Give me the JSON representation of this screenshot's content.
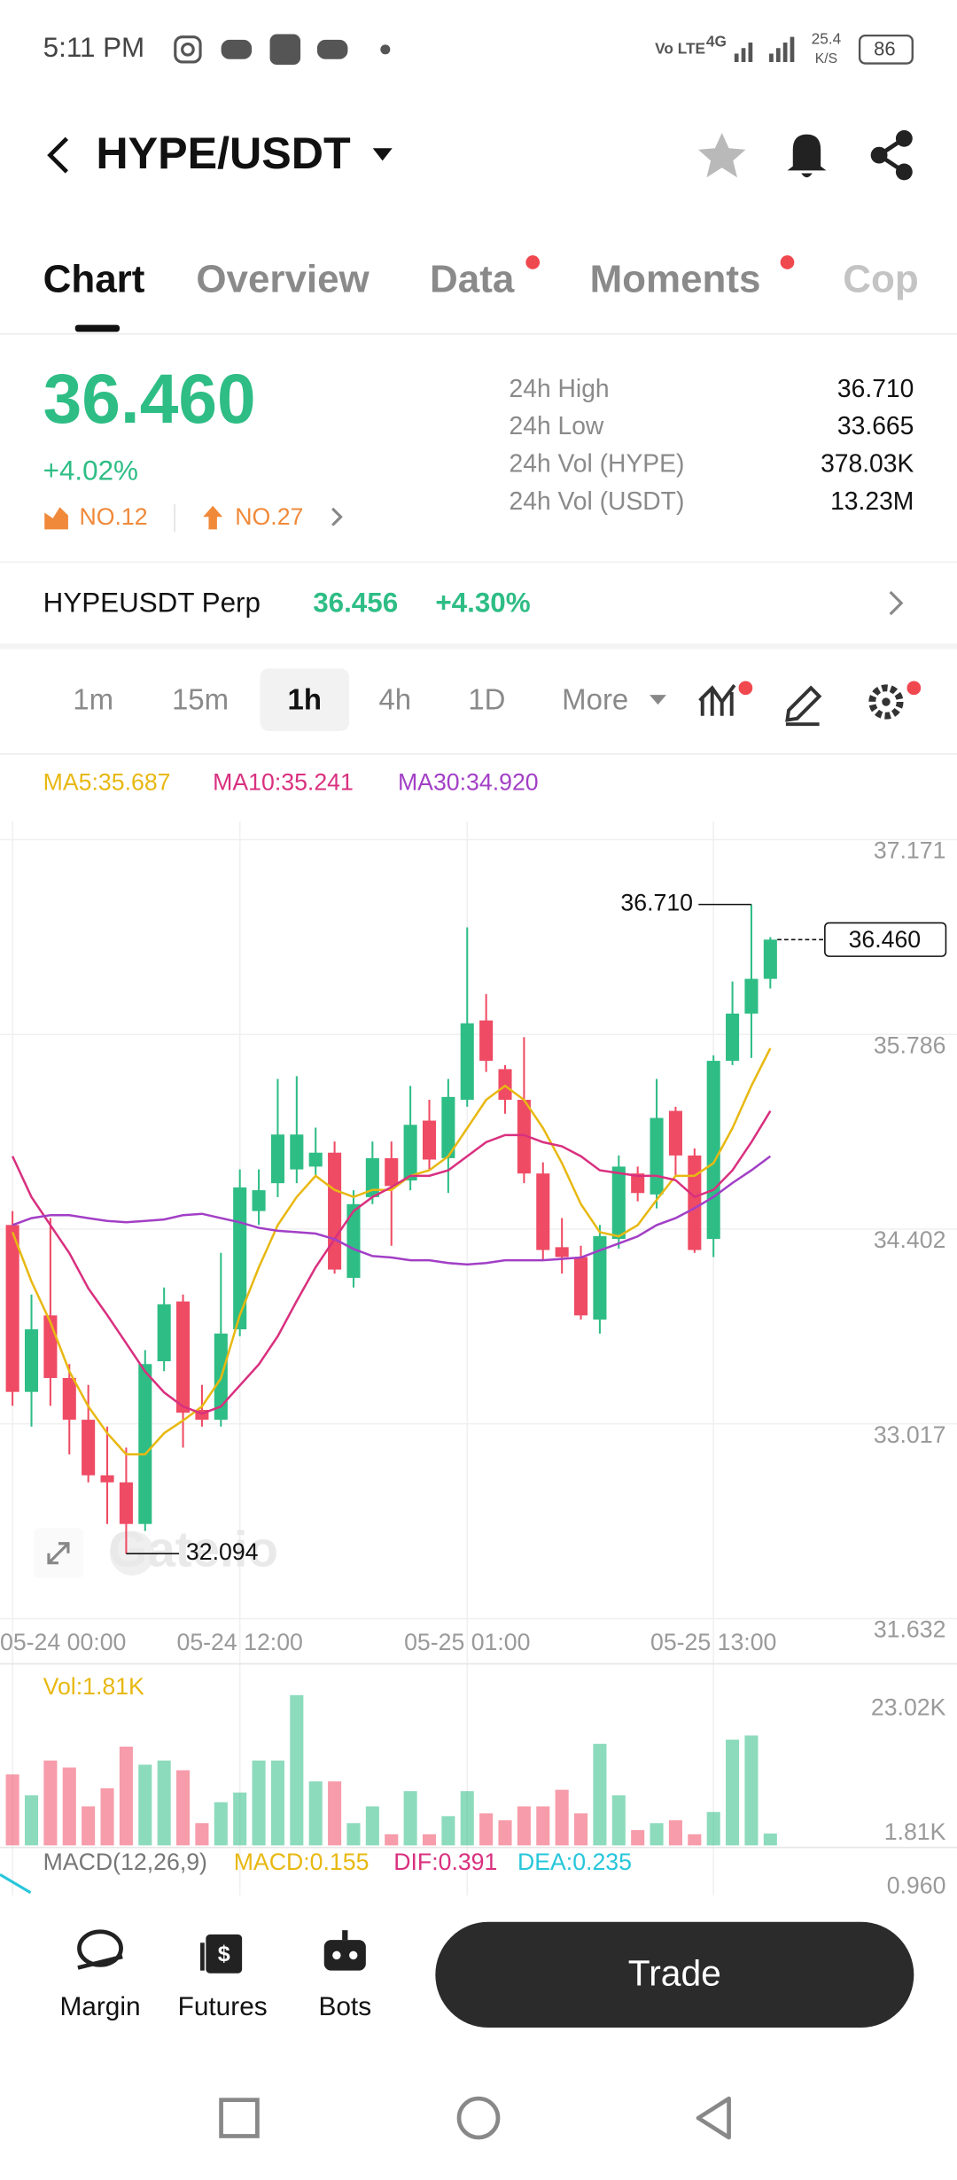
{
  "status_bar": {
    "time": "5:11 PM",
    "network": "Vo LTE",
    "signal": "4G",
    "speed": "25.4",
    "speed_unit": "K/S",
    "battery": "86"
  },
  "header": {
    "title": "HYPE/USDT"
  },
  "tabs": [
    "Chart",
    "Overview",
    "Data",
    "Moments",
    "Cop"
  ],
  "ticker": {
    "price": "36.460",
    "change": "+4.02%",
    "rank_1": "NO.12",
    "rank_2": "NO.27",
    "stats": [
      {
        "label": "24h High",
        "value": "36.710"
      },
      {
        "label": "24h Low",
        "value": "33.665"
      },
      {
        "label": "24h Vol (HYPE)",
        "value": "378.03K"
      },
      {
        "label": "24h Vol (USDT)",
        "value": "13.23M"
      }
    ]
  },
  "perp": {
    "name": "HYPEUSDT Perp",
    "price": "36.456",
    "change": "+4.30%"
  },
  "intervals": [
    "1m",
    "15m",
    "1h",
    "4h",
    "1D",
    "More"
  ],
  "chart_data": {
    "type": "candlestick",
    "categories": [
      "05-24 00:00",
      null,
      null,
      null,
      null,
      null,
      null,
      null,
      null,
      null,
      null,
      null,
      "05-24 12:00",
      null,
      null,
      null,
      null,
      null,
      null,
      null,
      null,
      null,
      null,
      null,
      "05-25 01:00",
      null,
      null,
      null,
      null,
      null,
      null,
      null,
      null,
      null,
      null,
      null,
      null,
      "05-25 13:00",
      null,
      null,
      null
    ],
    "open": [
      34.431,
      33.244,
      33.788,
      33.343,
      33.046,
      32.651,
      32.601,
      32.305,
      33.462,
      33.887,
      33.116,
      33.046,
      33.689,
      34.53,
      34.728,
      34.826,
      34.846,
      34.945,
      34.055,
      34.629,
      34.906,
      34.747,
      35.173,
      34.906,
      35.321,
      35.885,
      35.539,
      35.321,
      34.797,
      34.273,
      34.203,
      33.758,
      34.332,
      34.797,
      34.648,
      35.242,
      34.925,
      34.332,
      35.598,
      35.934,
      36.181
    ],
    "high": [
      34.53,
      33.936,
      34.48,
      33.442,
      33.294,
      32.997,
      32.848,
      33.541,
      33.986,
      33.936,
      33.294,
      34.233,
      34.826,
      34.826,
      35.469,
      35.489,
      35.123,
      35.024,
      34.678,
      35.024,
      35.024,
      35.42,
      35.321,
      35.469,
      36.547,
      36.073,
      35.568,
      35.766,
      34.876,
      34.48,
      34.283,
      34.431,
      34.925,
      34.846,
      35.469,
      35.272,
      34.975,
      35.637,
      36.162,
      36.71,
      36.478
    ],
    "low": [
      33.145,
      32.997,
      33.145,
      32.799,
      32.601,
      32.305,
      32.094,
      32.255,
      33.392,
      32.848,
      32.997,
      32.997,
      33.64,
      34.431,
      34.629,
      34.728,
      34.777,
      34.085,
      33.986,
      34.579,
      34.283,
      34.678,
      34.826,
      34.658,
      35.272,
      35.519,
      35.222,
      34.728,
      34.184,
      34.085,
      33.758,
      33.659,
      34.263,
      34.599,
      34.549,
      34.777,
      34.233,
      34.203,
      35.568,
      35.618,
      36.112
    ],
    "close": [
      33.244,
      33.689,
      33.343,
      33.046,
      32.651,
      32.601,
      32.305,
      33.442,
      33.867,
      33.096,
      33.046,
      33.659,
      34.698,
      34.678,
      35.074,
      35.074,
      34.945,
      34.114,
      34.579,
      34.906,
      34.708,
      35.143,
      34.896,
      35.341,
      35.865,
      35.598,
      35.321,
      34.797,
      34.253,
      34.203,
      33.788,
      34.352,
      34.846,
      34.658,
      35.192,
      34.925,
      34.253,
      35.598,
      35.934,
      36.181,
      36.46
    ],
    "up_color": "#2ebd85",
    "down_color": "#ef4b64",
    "ylim": [
      31.632,
      37.171
    ],
    "yticks": [
      37.171,
      35.786,
      34.402,
      33.017,
      31.632
    ],
    "grid": true,
    "max_label": "36.710",
    "min_label": "32.094",
    "last_label": "36.460",
    "watermark": "Gate.io",
    "ma": [
      {
        "label": "MA5:35.687",
        "color": "#e8b812",
        "values": [
          34.38,
          34.03,
          33.74,
          33.39,
          33.14,
          32.95,
          32.8,
          32.8,
          32.95,
          33.04,
          33.14,
          33.34,
          33.79,
          34.13,
          34.43,
          34.63,
          34.78,
          34.68,
          34.63,
          34.68,
          34.68,
          34.78,
          34.82,
          34.92,
          35.12,
          35.32,
          35.42,
          35.32,
          35.12,
          34.87,
          34.58,
          34.38,
          34.35,
          34.43,
          34.61,
          34.78,
          34.78,
          34.87,
          35.12,
          35.42,
          35.687
        ]
      },
      {
        "label": "MA10:35.241",
        "color": "#d9307f",
        "values": [
          34.92,
          34.63,
          34.43,
          34.23,
          33.98,
          33.79,
          33.59,
          33.39,
          33.24,
          33.14,
          33.09,
          33.14,
          33.29,
          33.44,
          33.64,
          33.89,
          34.13,
          34.33,
          34.53,
          34.63,
          34.7,
          34.78,
          34.78,
          34.82,
          34.92,
          35.02,
          35.07,
          35.07,
          35.02,
          34.99,
          34.92,
          34.82,
          34.8,
          34.78,
          34.78,
          34.75,
          34.63,
          34.68,
          34.82,
          35.02,
          35.241
        ]
      },
      {
        "label": "MA30:34.920",
        "color": "#a23fc6",
        "values": [
          34.43,
          34.48,
          34.5,
          34.5,
          34.48,
          34.46,
          34.45,
          34.46,
          34.47,
          34.5,
          34.51,
          34.48,
          34.45,
          34.41,
          34.39,
          34.38,
          34.37,
          34.33,
          34.26,
          34.21,
          34.2,
          34.18,
          34.18,
          34.16,
          34.15,
          34.16,
          34.18,
          34.18,
          34.18,
          34.19,
          34.2,
          34.25,
          34.3,
          34.35,
          34.43,
          34.48,
          34.55,
          34.63,
          34.73,
          34.82,
          34.92
        ]
      }
    ],
    "volume": {
      "label": "Vol:1.81K",
      "ylim": [
        0,
        23.02
      ],
      "yticks": [
        {
          "value": 23.02,
          "label": "23.02K"
        },
        {
          "value": 1.81,
          "label": "1.81K"
        }
      ],
      "values": [
        10.87,
        7.67,
        13.0,
        11.93,
        5.97,
        8.74,
        15.13,
        12.36,
        13.0,
        11.51,
        3.41,
        6.61,
        8.1,
        13.0,
        13.0,
        23.02,
        9.8,
        9.8,
        3.41,
        5.97,
        1.7,
        8.31,
        1.7,
        4.48,
        8.31,
        4.9,
        3.84,
        5.97,
        5.97,
        8.52,
        4.9,
        15.56,
        7.67,
        2.34,
        3.41,
        3.84,
        1.7,
        5.11,
        16.2,
        16.83,
        1.81
      ]
    },
    "macd": {
      "title": "MACD(12,26,9)",
      "macd": "MACD:0.155",
      "dif": "DIF:0.391",
      "dea": "DEA:0.235",
      "axis_label": "0.960"
    }
  },
  "bottom_bar": {
    "items": [
      "Margin",
      "Futures",
      "Bots"
    ],
    "button": "Trade"
  }
}
